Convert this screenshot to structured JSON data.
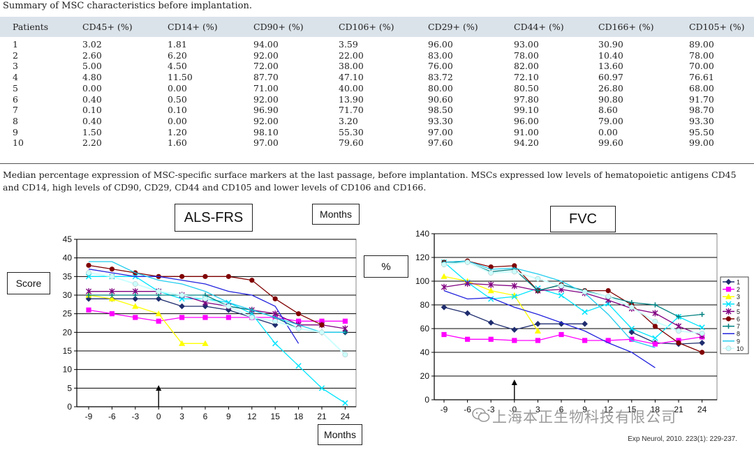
{
  "table": {
    "caption": "Summary of MSC characteristics before implantation.",
    "columns": [
      "Patients",
      "CD45+ (%)",
      "CD14+ (%)",
      "CD90+ (%)",
      "CD106+ (%)",
      "CD29+ (%)",
      "CD44+ (%)",
      "CD166+ (%)",
      "CD105+ (%)"
    ],
    "rows": [
      [
        "1",
        "3.02",
        "1.81",
        "94.00",
        "3.59",
        "96.00",
        "93.00",
        "30.90",
        "89.00"
      ],
      [
        "2",
        "2.60",
        "6.20",
        "92.00",
        "22.00",
        "83.00",
        "78.00",
        "10.40",
        "78.00"
      ],
      [
        "3",
        "5.00",
        "4.50",
        "72.00",
        "38.00",
        "76.00",
        "82.00",
        "13.60",
        "70.00"
      ],
      [
        "4",
        "4.80",
        "11.50",
        "87.70",
        "47.10",
        "83.72",
        "72.10",
        "60.97",
        "76.61"
      ],
      [
        "5",
        "0.00",
        "0.00",
        "71.00",
        "40.00",
        "80.00",
        "80.50",
        "26.80",
        "68.00"
      ],
      [
        "6",
        "0.40",
        "0.50",
        "92.00",
        "13.90",
        "90.60",
        "97.80",
        "90.80",
        "91.70"
      ],
      [
        "7",
        "0.10",
        "0.10",
        "96.90",
        "71.70",
        "98.50",
        "99.10",
        "8.60",
        "98.70"
      ],
      [
        "8",
        "0.40",
        "0.00",
        "92.00",
        "3.20",
        "93.30",
        "96.00",
        "79.00",
        "93.30"
      ],
      [
        "9",
        "1.50",
        "1.20",
        "98.10",
        "55.30",
        "97.00",
        "91.00",
        "0.00",
        "95.50"
      ],
      [
        "10",
        "2.20",
        "1.60",
        "97.00",
        "79.60",
        "97.60",
        "94.20",
        "99.60",
        "99.00"
      ]
    ],
    "footnote": "Median percentage expression of MSC-specific surface markers at the last passage, before implantation. MSCs expressed low levels of hematopoietic antigens CD45 and CD14, high levels of CD90, CD29, CD44 and CD105 and lower levels of CD106 and CD166."
  },
  "chart_data": [
    {
      "type": "line",
      "title": "ALS-FRS",
      "ylabel": "Score",
      "xlabel": "Months",
      "xlabel_top": "Months",
      "categories": [
        "-9",
        "-6",
        "-3",
        "0",
        "3",
        "6",
        "9",
        "12",
        "15",
        "18",
        "21",
        "24"
      ],
      "ylim": [
        0,
        45
      ],
      "yticks": [
        0,
        5,
        10,
        15,
        20,
        25,
        30,
        35,
        40,
        45
      ],
      "grid": true,
      "annotation": "arrow at month 0 (implantation)",
      "series": [
        {
          "name": "1",
          "color": "#1f2d6e",
          "marker": "diamond",
          "values": [
            29,
            29,
            29,
            29,
            27,
            27,
            26,
            24,
            22,
            null,
            20,
            20
          ]
        },
        {
          "name": "2",
          "color": "#ff00ff",
          "marker": "square",
          "values": [
            26,
            25,
            24,
            23,
            24,
            24,
            24,
            24,
            24,
            23,
            23,
            23
          ]
        },
        {
          "name": "3",
          "color": "#ffff00",
          "marker": "triangle",
          "values": [
            30,
            29,
            27,
            25,
            17,
            17,
            null,
            null,
            null,
            null,
            null,
            null
          ]
        },
        {
          "name": "4",
          "color": "#00e5ff",
          "marker": "x",
          "values": [
            35,
            35,
            35,
            31,
            29,
            29,
            28,
            25,
            17,
            11,
            5,
            1
          ]
        },
        {
          "name": "5",
          "color": "#800080",
          "marker": "star",
          "values": [
            31,
            31,
            31,
            31,
            30,
            28,
            27,
            26,
            25,
            22,
            22,
            21
          ]
        },
        {
          "name": "6",
          "color": "#800000",
          "marker": "circle",
          "values": [
            38,
            37,
            36,
            35,
            35,
            35,
            35,
            34,
            29,
            25,
            22,
            null
          ]
        },
        {
          "name": "7",
          "color": "#008080",
          "marker": "plus",
          "values": [
            30,
            30,
            30,
            30,
            30,
            30,
            27,
            26,
            24,
            21,
            20,
            20
          ]
        },
        {
          "name": "8",
          "color": "#2222dd",
          "marker": "none",
          "values": [
            37,
            36,
            35,
            35,
            34,
            33,
            31,
            30,
            27,
            17,
            null,
            null
          ]
        },
        {
          "name": "9",
          "color": "#22ccee",
          "marker": "none",
          "values": [
            39,
            39,
            36,
            34,
            33,
            31,
            28,
            26,
            24,
            22,
            20,
            20
          ]
        },
        {
          "name": "10",
          "color": "#ccffff",
          "marker": "circle",
          "values": [
            36,
            35,
            33,
            31,
            30,
            29,
            27,
            24,
            23,
            21,
            20,
            14
          ]
        }
      ]
    },
    {
      "type": "line",
      "title": "FVC",
      "ylabel": "%",
      "categories": [
        "-9",
        "-6",
        "-3",
        "0",
        "3",
        "6",
        "9",
        "12",
        "15",
        "18",
        "21",
        "24"
      ],
      "ylim": [
        0,
        140
      ],
      "yticks": [
        0,
        20,
        40,
        60,
        80,
        100,
        120,
        140
      ],
      "grid": true,
      "legend": "right",
      "annotation": "arrow at month 0 (implantation)",
      "series": [
        {
          "name": "1",
          "color": "#1f2d6e",
          "marker": "diamond",
          "values": [
            78,
            73,
            65,
            59,
            64,
            64,
            64,
            null,
            57,
            48,
            47,
            48
          ]
        },
        {
          "name": "2",
          "color": "#ff00ff",
          "marker": "square",
          "values": [
            55,
            51,
            51,
            50,
            50,
            55,
            50,
            50,
            51,
            47,
            50,
            53
          ]
        },
        {
          "name": "3",
          "color": "#ffff00",
          "marker": "triangle",
          "values": [
            104,
            100,
            92,
            88,
            58,
            null,
            null,
            null,
            null,
            null,
            null,
            null
          ]
        },
        {
          "name": "4",
          "color": "#00e5ff",
          "marker": "x",
          "values": [
            116,
            99,
            85,
            87,
            94,
            88,
            74,
            81,
            60,
            52,
            70,
            61
          ]
        },
        {
          "name": "5",
          "color": "#800080",
          "marker": "star",
          "values": [
            95,
            98,
            97,
            96,
            92,
            93,
            90,
            84,
            77,
            73,
            62,
            54
          ]
        },
        {
          "name": "6",
          "color": "#800000",
          "marker": "circle",
          "values": [
            116,
            117,
            112,
            113,
            92,
            97,
            92,
            92,
            80,
            62,
            48,
            40
          ]
        },
        {
          "name": "7",
          "color": "#008080",
          "marker": "plus",
          "values": [
            116,
            116,
            108,
            110,
            92,
            97,
            92,
            87,
            82,
            80,
            70,
            72
          ]
        },
        {
          "name": "8",
          "color": "#2222dd",
          "marker": "none",
          "values": [
            92,
            85,
            86,
            78,
            72,
            65,
            58,
            48,
            40,
            27,
            null,
            null
          ]
        },
        {
          "name": "9",
          "color": "#22ccee",
          "marker": "none",
          "values": [
            116,
            117,
            110,
            111,
            106,
            100,
            90,
            72,
            50,
            44,
            null,
            null
          ]
        },
        {
          "name": "10",
          "color": "#ccffff",
          "marker": "circle",
          "values": [
            114,
            116,
            107,
            108,
            102,
            96,
            91,
            87,
            78,
            66,
            58,
            56
          ]
        }
      ]
    }
  ],
  "watermark": "上海本正生物科技有限公司",
  "source": "Exp Neurol, 2010. 223(1): 229-237."
}
